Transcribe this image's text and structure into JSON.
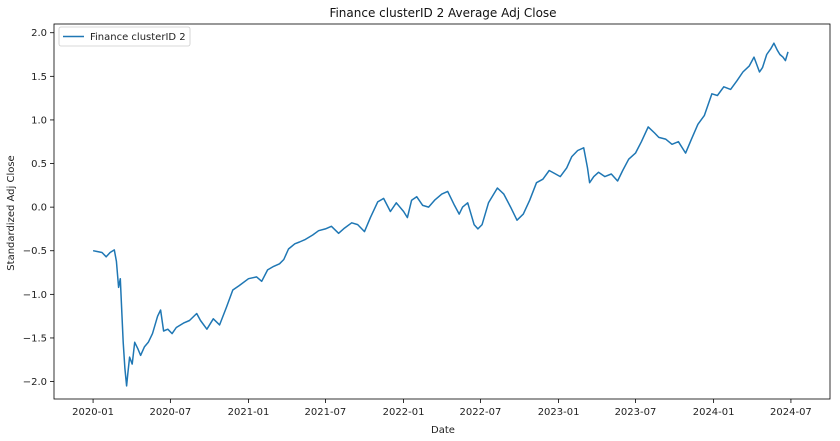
{
  "chart_data": {
    "type": "line",
    "title": "Finance clusterID 2 Average Adj Close",
    "xlabel": "Date",
    "ylabel": "Standardized Adj Close",
    "x_ticks": [
      "2020-01",
      "2020-07",
      "2021-01",
      "2021-07",
      "2022-01",
      "2022-07",
      "2023-01",
      "2023-07",
      "2024-01",
      "2024-07"
    ],
    "y_ticks": [
      "2.0",
      "1.5",
      "1.0",
      "0.5",
      "0.0",
      "−0.5",
      "−1.0",
      "−1.5",
      "−2.0"
    ],
    "xlim": [
      "2019-10-01",
      "2024-10-01"
    ],
    "ylim": [
      -2.2,
      2.1
    ],
    "grid": false,
    "legend_position": "top-left",
    "series": [
      {
        "name": "Finance clusterID 2",
        "color": "#1f77b4",
        "points": [
          [
            "2020-01-01",
            -0.5
          ],
          [
            "2020-01-12",
            -0.51
          ],
          [
            "2020-01-22",
            -0.52
          ],
          [
            "2020-02-01",
            -0.57
          ],
          [
            "2020-02-10",
            -0.52
          ],
          [
            "2020-02-20",
            -0.49
          ],
          [
            "2020-02-25",
            -0.62
          ],
          [
            "2020-03-01",
            -0.92
          ],
          [
            "2020-03-05",
            -0.82
          ],
          [
            "2020-03-09",
            -1.25
          ],
          [
            "2020-03-12",
            -1.55
          ],
          [
            "2020-03-16",
            -1.85
          ],
          [
            "2020-03-20",
            -2.05
          ],
          [
            "2020-03-23",
            -1.9
          ],
          [
            "2020-03-27",
            -1.72
          ],
          [
            "2020-04-02",
            -1.8
          ],
          [
            "2020-04-08",
            -1.55
          ],
          [
            "2020-04-15",
            -1.62
          ],
          [
            "2020-04-22",
            -1.7
          ],
          [
            "2020-05-01",
            -1.6
          ],
          [
            "2020-05-10",
            -1.55
          ],
          [
            "2020-05-20",
            -1.45
          ],
          [
            "2020-06-01",
            -1.25
          ],
          [
            "2020-06-08",
            -1.18
          ],
          [
            "2020-06-15",
            -1.42
          ],
          [
            "2020-06-25",
            -1.4
          ],
          [
            "2020-07-05",
            -1.45
          ],
          [
            "2020-07-15",
            -1.38
          ],
          [
            "2020-08-01",
            -1.33
          ],
          [
            "2020-08-15",
            -1.3
          ],
          [
            "2020-09-01",
            -1.22
          ],
          [
            "2020-09-10",
            -1.3
          ],
          [
            "2020-09-25",
            -1.4
          ],
          [
            "2020-10-10",
            -1.28
          ],
          [
            "2020-10-25",
            -1.35
          ],
          [
            "2020-11-10",
            -1.15
          ],
          [
            "2020-11-25",
            -0.95
          ],
          [
            "2020-12-10",
            -0.9
          ],
          [
            "2021-01-01",
            -0.82
          ],
          [
            "2021-01-20",
            -0.8
          ],
          [
            "2021-02-01",
            -0.85
          ],
          [
            "2021-02-15",
            -0.72
          ],
          [
            "2021-03-01",
            -0.68
          ],
          [
            "2021-03-15",
            -0.65
          ],
          [
            "2021-03-25",
            -0.6
          ],
          [
            "2021-04-05",
            -0.48
          ],
          [
            "2021-04-20",
            -0.42
          ],
          [
            "2021-05-01",
            -0.4
          ],
          [
            "2021-05-15",
            -0.37
          ],
          [
            "2021-06-01",
            -0.32
          ],
          [
            "2021-06-15",
            -0.27
          ],
          [
            "2021-07-01",
            -0.25
          ],
          [
            "2021-07-15",
            -0.22
          ],
          [
            "2021-08-01",
            -0.3
          ],
          [
            "2021-08-15",
            -0.24
          ],
          [
            "2021-09-01",
            -0.18
          ],
          [
            "2021-09-15",
            -0.2
          ],
          [
            "2021-10-01",
            -0.28
          ],
          [
            "2021-10-15",
            -0.12
          ],
          [
            "2021-11-01",
            0.06
          ],
          [
            "2021-11-15",
            0.1
          ],
          [
            "2021-12-01",
            -0.05
          ],
          [
            "2021-12-15",
            0.05
          ],
          [
            "2022-01-01",
            -0.05
          ],
          [
            "2022-01-10",
            -0.12
          ],
          [
            "2022-01-20",
            0.08
          ],
          [
            "2022-02-01",
            0.12
          ],
          [
            "2022-02-15",
            0.02
          ],
          [
            "2022-03-01",
            0.0
          ],
          [
            "2022-03-15",
            0.08
          ],
          [
            "2022-04-01",
            0.15
          ],
          [
            "2022-04-15",
            0.18
          ],
          [
            "2022-05-01",
            0.02
          ],
          [
            "2022-05-12",
            -0.08
          ],
          [
            "2022-05-20",
            0.0
          ],
          [
            "2022-06-01",
            0.05
          ],
          [
            "2022-06-16",
            -0.2
          ],
          [
            "2022-06-25",
            -0.25
          ],
          [
            "2022-07-05",
            -0.2
          ],
          [
            "2022-07-20",
            0.05
          ],
          [
            "2022-08-10",
            0.22
          ],
          [
            "2022-08-25",
            0.15
          ],
          [
            "2022-09-10",
            0.0
          ],
          [
            "2022-09-25",
            -0.15
          ],
          [
            "2022-10-10",
            -0.08
          ],
          [
            "2022-10-25",
            0.08
          ],
          [
            "2022-11-10",
            0.28
          ],
          [
            "2022-11-25",
            0.32
          ],
          [
            "2022-12-10",
            0.42
          ],
          [
            "2022-12-25",
            0.38
          ],
          [
            "2023-01-05",
            0.35
          ],
          [
            "2023-01-20",
            0.45
          ],
          [
            "2023-02-01",
            0.58
          ],
          [
            "2023-02-15",
            0.65
          ],
          [
            "2023-03-01",
            0.68
          ],
          [
            "2023-03-10",
            0.45
          ],
          [
            "2023-03-15",
            0.28
          ],
          [
            "2023-03-25",
            0.35
          ],
          [
            "2023-04-05",
            0.4
          ],
          [
            "2023-04-20",
            0.35
          ],
          [
            "2023-05-05",
            0.38
          ],
          [
            "2023-05-20",
            0.3
          ],
          [
            "2023-06-01",
            0.42
          ],
          [
            "2023-06-15",
            0.55
          ],
          [
            "2023-07-01",
            0.62
          ],
          [
            "2023-07-15",
            0.75
          ],
          [
            "2023-07-31",
            0.92
          ],
          [
            "2023-08-15",
            0.85
          ],
          [
            "2023-08-25",
            0.8
          ],
          [
            "2023-09-10",
            0.78
          ],
          [
            "2023-09-25",
            0.72
          ],
          [
            "2023-10-10",
            0.75
          ],
          [
            "2023-10-27",
            0.62
          ],
          [
            "2023-11-10",
            0.78
          ],
          [
            "2023-11-25",
            0.95
          ],
          [
            "2023-12-10",
            1.05
          ],
          [
            "2023-12-28",
            1.3
          ],
          [
            "2024-01-10",
            1.28
          ],
          [
            "2024-01-25",
            1.38
          ],
          [
            "2024-02-10",
            1.35
          ],
          [
            "2024-02-25",
            1.45
          ],
          [
            "2024-03-10",
            1.55
          ],
          [
            "2024-03-25",
            1.62
          ],
          [
            "2024-04-05",
            1.72
          ],
          [
            "2024-04-18",
            1.55
          ],
          [
            "2024-04-25",
            1.6
          ],
          [
            "2024-05-05",
            1.75
          ],
          [
            "2024-05-15",
            1.82
          ],
          [
            "2024-05-22",
            1.88
          ],
          [
            "2024-05-30",
            1.8
          ],
          [
            "2024-06-05",
            1.75
          ],
          [
            "2024-06-12",
            1.72
          ],
          [
            "2024-06-18",
            1.68
          ],
          [
            "2024-06-24",
            1.78
          ]
        ]
      }
    ]
  }
}
